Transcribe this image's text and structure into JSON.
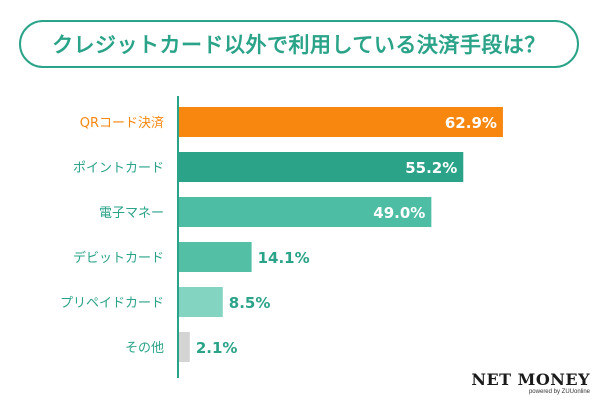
{
  "chart_data": {
    "type": "bar",
    "orientation": "horizontal",
    "title": "クレジットカード以外で利用している決済手段は？",
    "categories": [
      "QRコード決済",
      "ポイントカード",
      "電子マネー",
      "デビットカード",
      "プリペイドカード",
      "その他"
    ],
    "values": [
      62.9,
      55.2,
      49.0,
      14.1,
      8.5,
      2.1
    ],
    "value_labels": [
      "62.9%",
      "55.2%",
      "49.0%",
      "14.1%",
      "8.5%",
      "2.1%"
    ],
    "bar_colors": [
      "#f7870f",
      "#2aa388",
      "#4dbda4",
      "#53bfa5",
      "#83d5c2",
      "#d4d4d4"
    ],
    "label_colors": [
      "#f7870f",
      "#2aa388",
      "#2aa388",
      "#2aa388",
      "#2aa388",
      "#2aa388"
    ],
    "axis_color": "#2aa388",
    "xlim": [
      0,
      100
    ],
    "grid": false,
    "legend": "none"
  },
  "logo": {
    "name": "NET MONEY",
    "sub": "powered by ZUUonline"
  }
}
